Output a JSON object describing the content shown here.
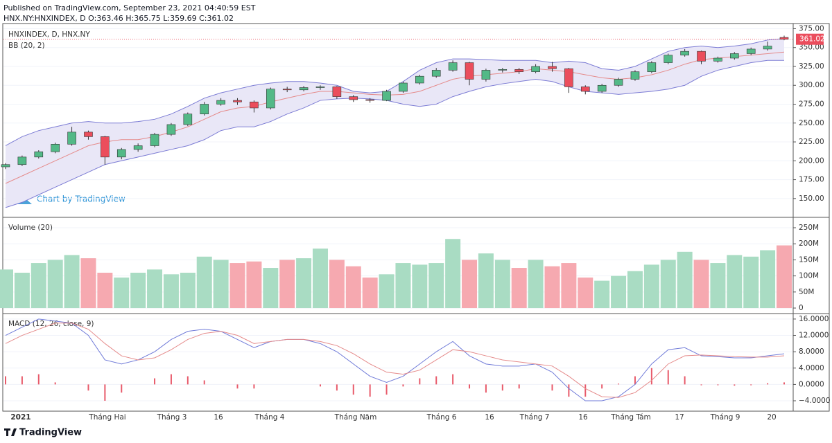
{
  "header": {
    "published": "Published on TradingView.com, September 23, 2021 04:40:59 EST",
    "symbol": "HNX.NY:HNXINDEX, D O:363.46 H:365.75 L:359.69 C:361.02"
  },
  "watermark": "Chart by TradingView",
  "footer": "TradingView",
  "x_axis": {
    "labels": [
      "2021",
      "Tháng Hai",
      "Tháng 3",
      "16",
      "Tháng 4",
      "Tháng Năm",
      "Tháng 6",
      "16",
      "Tháng 7",
      "16",
      "Tháng Tám",
      "17",
      "Tháng 9",
      "20"
    ]
  },
  "chart_data": [
    {
      "type": "candlestick",
      "title": "HNXINDEX, D, HNX.NY",
      "subtitle": "BB (20, 2)",
      "open": [
        192,
        195,
        205,
        212,
        222,
        238,
        232,
        205,
        215,
        220,
        235,
        248,
        262,
        275,
        280,
        278,
        270,
        295,
        294,
        297,
        298,
        285,
        281,
        280,
        292,
        303,
        312,
        320,
        330,
        308,
        320,
        321,
        318,
        325,
        322,
        298,
        292,
        300,
        308,
        318,
        330,
        340,
        345,
        332,
        336,
        342,
        348,
        363.46
      ],
      "high": [
        197,
        207,
        214,
        224,
        245,
        240,
        233,
        217,
        223,
        237,
        250,
        264,
        278,
        283,
        283,
        280,
        297,
        298,
        299,
        300,
        299,
        287,
        283,
        294,
        305,
        314,
        323,
        333,
        331,
        322,
        323,
        323,
        328,
        331,
        323,
        300,
        302,
        310,
        320,
        332,
        342,
        348,
        346,
        338,
        344,
        350,
        358,
        365.75
      ],
      "low": [
        189,
        193,
        203,
        210,
        220,
        228,
        195,
        202,
        212,
        218,
        233,
        246,
        260,
        273,
        274,
        264,
        268,
        291,
        292,
        294,
        282,
        278,
        277,
        279,
        290,
        301,
        310,
        318,
        300,
        305,
        317,
        315,
        316,
        318,
        290,
        288,
        290,
        298,
        306,
        316,
        328,
        338,
        328,
        330,
        334,
        340,
        346,
        359.69
      ],
      "close": [
        195,
        205,
        212,
        222,
        238,
        232,
        205,
        215,
        220,
        235,
        248,
        262,
        275,
        280,
        278,
        270,
        295,
        294,
        297,
        298,
        285,
        281,
        280,
        292,
        303,
        312,
        320,
        330,
        308,
        320,
        321,
        318,
        325,
        322,
        298,
        292,
        300,
        308,
        318,
        330,
        340,
        345,
        332,
        336,
        342,
        348,
        352,
        361.02
      ],
      "bands": {
        "upper": [
          220,
          232,
          240,
          245,
          250,
          252,
          250,
          250,
          252,
          255,
          262,
          272,
          283,
          290,
          295,
          300,
          303,
          305,
          305,
          303,
          300,
          292,
          290,
          292,
          305,
          320,
          330,
          335,
          335,
          334,
          333,
          333,
          333,
          330,
          332,
          330,
          322,
          320,
          325,
          335,
          345,
          350,
          352,
          350,
          352,
          355,
          360,
          362
        ],
        "middle": [
          170,
          180,
          190,
          200,
          210,
          220,
          225,
          228,
          228,
          232,
          238,
          245,
          255,
          265,
          270,
          272,
          278,
          283,
          288,
          292,
          292,
          290,
          288,
          287,
          288,
          292,
          300,
          308,
          312,
          314,
          316,
          318,
          322,
          320,
          318,
          314,
          310,
          308,
          310,
          314,
          320,
          328,
          334,
          336,
          338,
          340,
          342,
          344
        ],
        "lower": [
          138,
          145,
          155,
          165,
          175,
          185,
          195,
          200,
          205,
          210,
          215,
          220,
          228,
          240,
          245,
          245,
          252,
          262,
          270,
          280,
          282,
          283,
          282,
          280,
          275,
          272,
          275,
          285,
          292,
          298,
          302,
          305,
          308,
          305,
          298,
          292,
          290,
          288,
          290,
          292,
          295,
          300,
          312,
          320,
          325,
          330,
          333,
          333
        ],
        "band_color": "#7b7bd4",
        "middle_color": "#e58a8a",
        "fill": "#e9e7f7"
      },
      "up_color": "#53b987",
      "down_color": "#eb4d5c",
      "ylim": [
        126,
        380
      ],
      "yticks": [
        {
          "value": 150,
          "label": "150.00"
        },
        {
          "value": 175,
          "label": "175.00"
        },
        {
          "value": 200,
          "label": "200.00"
        },
        {
          "value": 225,
          "label": "225.00"
        },
        {
          "value": 250,
          "label": "250.00"
        },
        {
          "value": 275,
          "label": "275.00"
        },
        {
          "value": 300,
          "label": "300.00"
        },
        {
          "value": 325,
          "label": "325.00"
        },
        {
          "value": 350,
          "label": "350.00"
        },
        {
          "value": 375,
          "label": "375.00"
        }
      ]
    },
    {
      "type": "bar",
      "title": "Volume (20)",
      "values": [
        120000000,
        110000000,
        140000000,
        150000000,
        165000000,
        155000000,
        110000000,
        95000000,
        110000000,
        120000000,
        105000000,
        110000000,
        160000000,
        150000000,
        140000000,
        145000000,
        125000000,
        150000000,
        155000000,
        185000000,
        150000000,
        130000000,
        95000000,
        105000000,
        140000000,
        135000000,
        140000000,
        215000000,
        150000000,
        170000000,
        150000000,
        125000000,
        150000000,
        130000000,
        140000000,
        95000000,
        85000000,
        100000000,
        115000000,
        135000000,
        150000000,
        175000000,
        150000000,
        140000000,
        165000000,
        160000000,
        180000000,
        195000000
      ],
      "up_color": "#a9dcc3",
      "down_color": "#f6a9b0",
      "ylim": [
        -15000000,
        278000000
      ],
      "yticks": [
        0,
        {
          "value": 50000000,
          "label": "50M"
        },
        {
          "value": 100000000,
          "label": "100M"
        },
        {
          "value": 150000000,
          "label": "150M"
        },
        {
          "value": 200000000,
          "label": "200M"
        },
        {
          "value": 250000000,
          "label": "250M"
        }
      ]
    },
    {
      "type": "macd",
      "title": "MACD (12, 26, close, 9)",
      "macd": [
        12,
        14,
        16,
        15.5,
        15,
        12,
        6,
        5,
        6,
        8,
        11,
        13,
        13.5,
        13,
        11,
        9,
        10.5,
        11,
        11,
        10,
        8,
        5,
        2,
        0.5,
        2,
        5,
        8,
        10.5,
        7,
        5,
        4.5,
        4.5,
        5,
        3,
        -1,
        -4,
        -4,
        -3,
        0,
        5,
        8.5,
        9,
        7,
        6.8,
        6.5,
        6.5,
        7,
        7.5
      ],
      "signal": [
        10,
        12,
        13.5,
        15,
        15,
        13.5,
        10,
        7,
        6,
        6.5,
        8.5,
        11,
        12.5,
        13,
        12,
        10,
        10.5,
        11,
        11,
        10.5,
        9.5,
        7.5,
        5,
        3,
        2.5,
        3.5,
        6,
        8.5,
        8,
        7,
        6,
        5.5,
        5,
        4.5,
        2,
        -1,
        -3,
        -3.2,
        -2,
        1,
        5,
        7,
        7.2,
        7,
        6.8,
        6.7,
        6.7,
        7
      ],
      "histogram": [
        2,
        2,
        2.5,
        0.5,
        0,
        -1.5,
        -4,
        -2,
        0,
        1.5,
        2.5,
        2,
        1,
        0,
        -1,
        -1,
        0,
        0,
        0,
        -0.5,
        -1.5,
        -2.5,
        -3,
        -2.5,
        -0.5,
        1.5,
        2,
        2.5,
        -1,
        -2,
        -1.5,
        -1,
        0,
        -1.5,
        -3,
        -3,
        -1,
        0.2,
        2,
        4,
        3.5,
        2,
        -0.2,
        -0.2,
        -0.3,
        -0.2,
        0.3,
        0.5
      ],
      "macd_color": "#6f7ad8",
      "signal_color": "#e58a8a",
      "histogram_color": "#e85a6a",
      "ylim": [
        -6.2,
        17
      ],
      "yticks": [
        {
          "value": -4,
          "label": "−4.0000"
        },
        {
          "value": 0,
          "label": "0.0000"
        },
        {
          "value": 4,
          "label": "4.0000"
        },
        {
          "value": 8,
          "label": "8.0000"
        },
        {
          "value": 12,
          "label": "12.0000"
        },
        {
          "value": 16,
          "label": "16.0000"
        }
      ]
    }
  ]
}
